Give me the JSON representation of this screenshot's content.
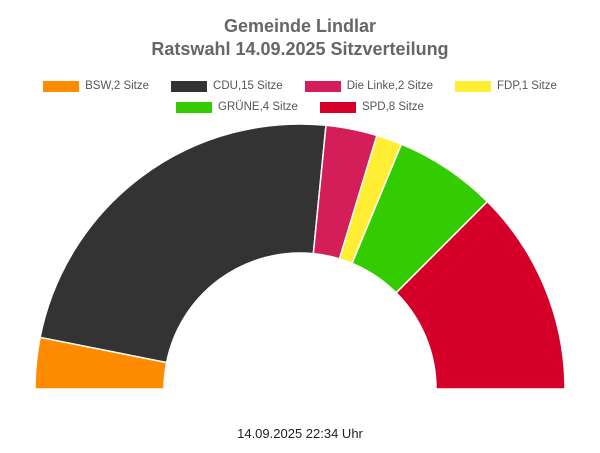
{
  "chart_data": {
    "type": "pie",
    "subtype": "parliament-semicircle",
    "title": "Gemeinde Lindlar",
    "subtitle": "Ratswahl 14.09.2025 Sitzverteilung",
    "series": [
      {
        "name": "BSW,2 Sitze",
        "party": "BSW",
        "value": 2,
        "color": "#ff8c00"
      },
      {
        "name": "CDU,15 Sitze",
        "party": "CDU",
        "value": 15,
        "color": "#333333"
      },
      {
        "name": "Die Linke,2 Sitze",
        "party": "Die Linke",
        "value": 2,
        "color": "#d41e5a"
      },
      {
        "name": "FDP,1 Sitze",
        "party": "FDP",
        "value": 1,
        "color": "#ffee33"
      },
      {
        "name": "GRÜNE,4 Sitze",
        "party": "GRÜNE",
        "value": 4,
        "color": "#33cc00"
      },
      {
        "name": "SPD,8 Sitze",
        "party": "SPD",
        "value": 8,
        "color": "#d4002a"
      }
    ],
    "legend": "top",
    "footer": "14.09.2025 22:34 Uhr"
  }
}
